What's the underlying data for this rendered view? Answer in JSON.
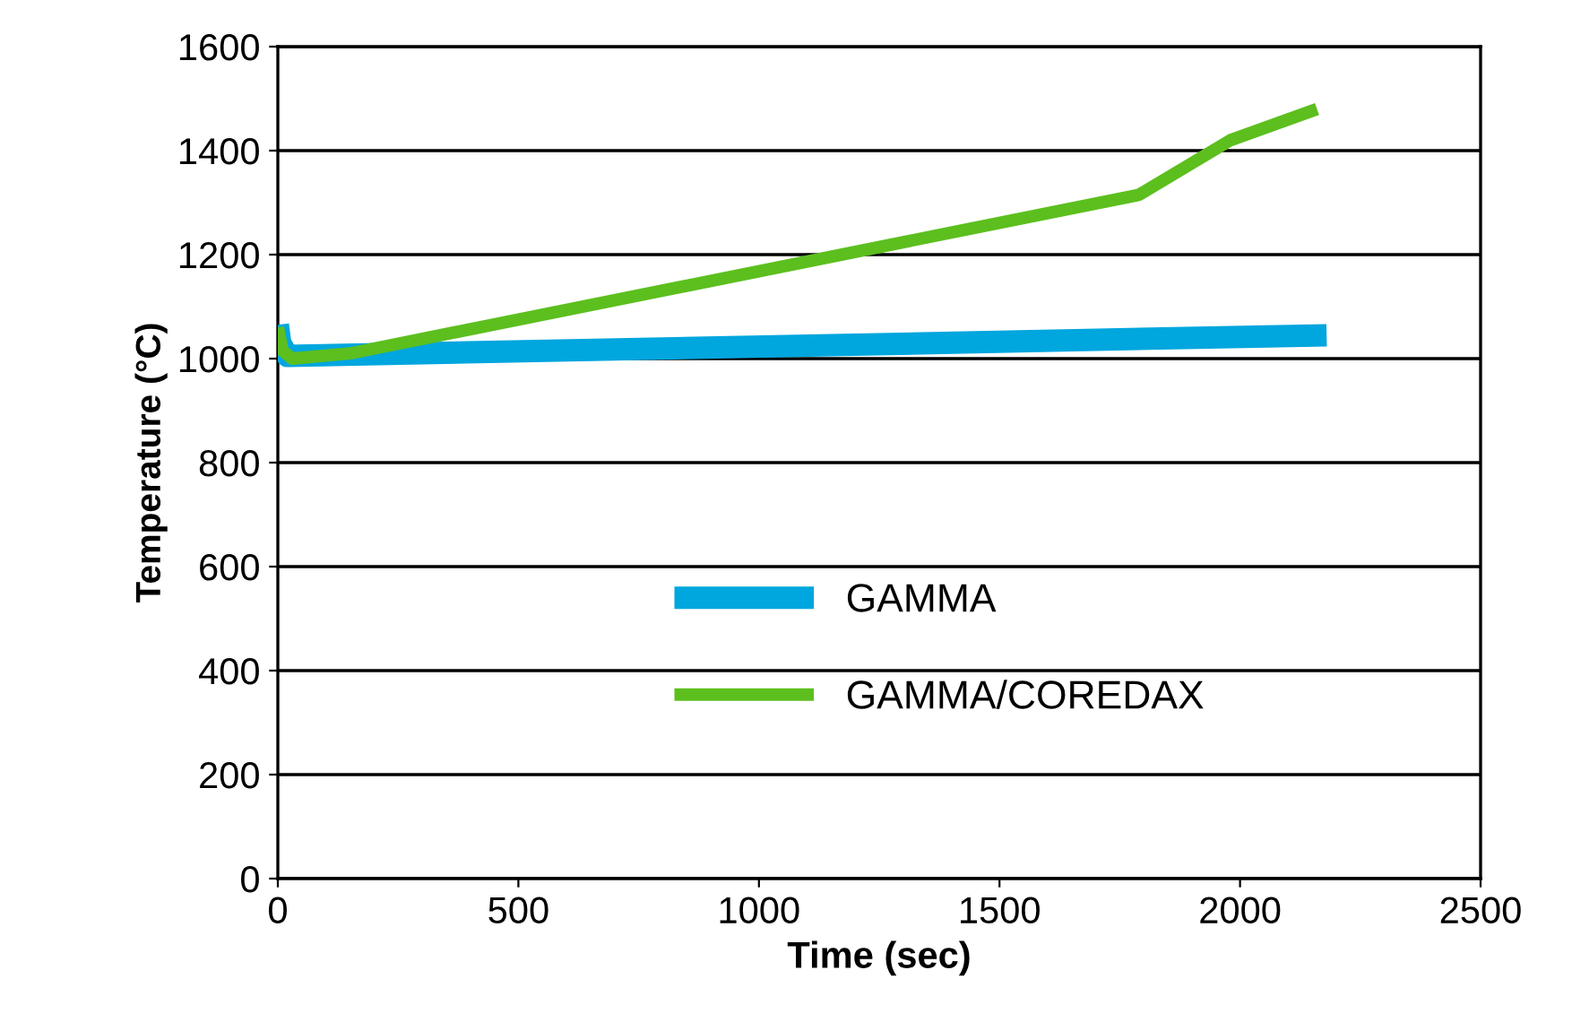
{
  "chart_data": {
    "type": "line",
    "xlabel": "Time (sec)",
    "ylabel": "Temperature (°C)",
    "xlim": [
      0,
      2500
    ],
    "xticks": [
      0,
      500,
      1000,
      1500,
      2000,
      2500
    ],
    "ylim": [
      0,
      1600
    ],
    "yticks": [
      0,
      200,
      400,
      600,
      800,
      1000,
      1200,
      1400,
      1600
    ],
    "grid": "y",
    "legend": "center",
    "marker": "none",
    "line_style": "solid",
    "series": [
      {
        "name": "GAMMA",
        "color": "#00a6de",
        "x": [
          0,
          5,
          20,
          2180
        ],
        "values": [
          1065,
          1030,
          1005,
          1045
        ]
      },
      {
        "name": "GAMMA/COREDAX",
        "color": "#5cbf1e",
        "x": [
          0,
          10,
          30,
          150,
          1790,
          1980,
          2160
        ],
        "values": [
          1060,
          1015,
          1000,
          1010,
          1315,
          1420,
          1480
        ]
      }
    ]
  }
}
